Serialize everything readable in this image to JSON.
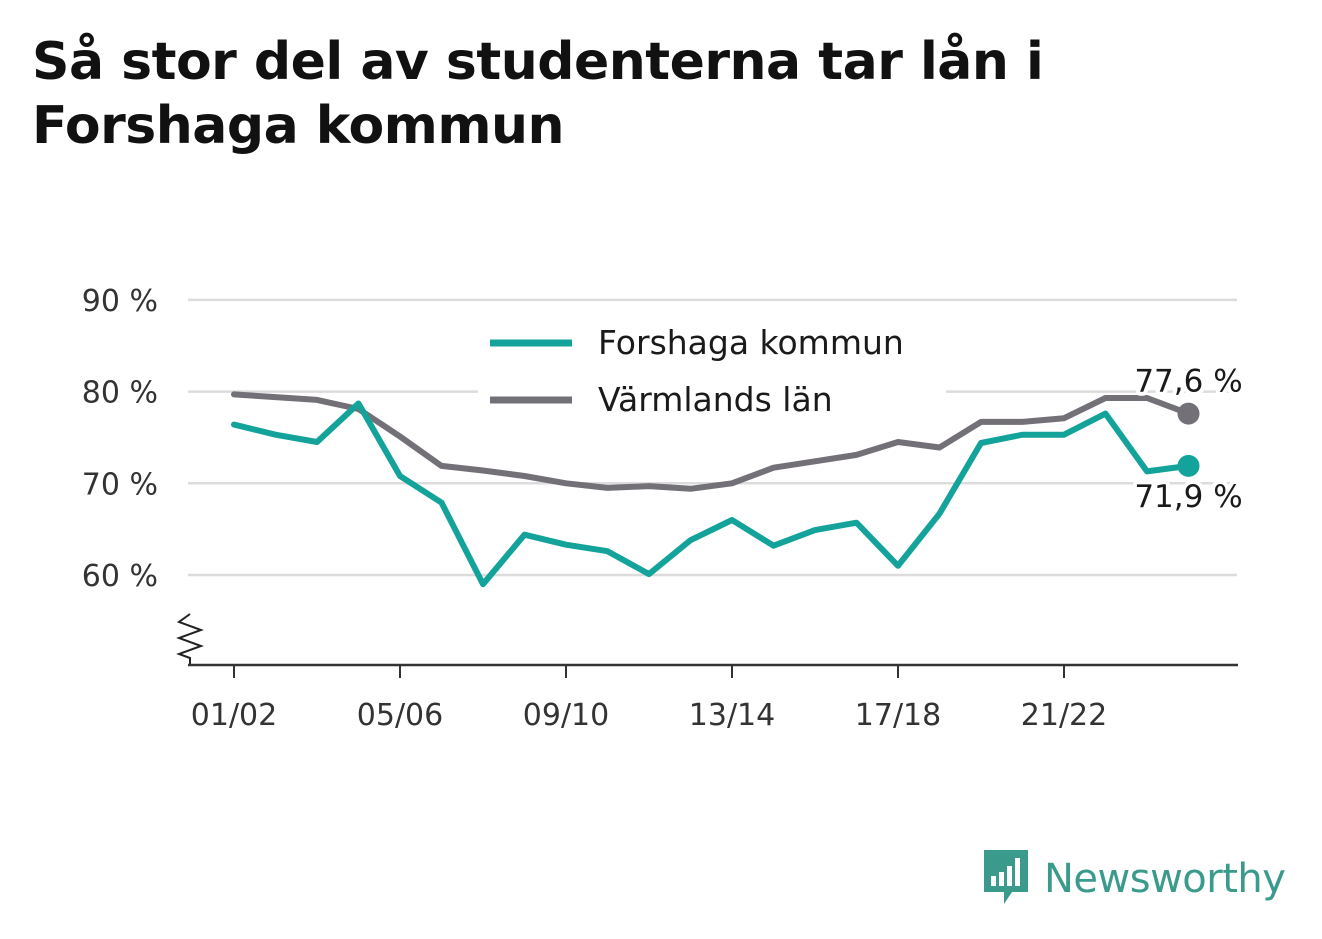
{
  "title": "Så stor del av studenterna tar lån i Forshaga kommun",
  "brand": {
    "name": "Newsworthy",
    "icon": "newsworthy-logo-icon",
    "color": "#3a9a8c"
  },
  "chart_data": {
    "type": "line",
    "x": [
      "01/02",
      "02/03",
      "03/04",
      "04/05",
      "05/06",
      "06/07",
      "07/08",
      "08/09",
      "09/10",
      "10/11",
      "11/12",
      "12/13",
      "13/14",
      "14/15",
      "15/16",
      "16/17",
      "17/18",
      "18/19",
      "19/20",
      "20/21",
      "21/22",
      "22/23",
      "23/24",
      "24/25"
    ],
    "xticks": [
      "01/02",
      "05/06",
      "09/10",
      "13/14",
      "17/18",
      "21/22"
    ],
    "yticks": [
      60,
      70,
      80,
      90
    ],
    "ytick_labels": [
      "60 %",
      "70 %",
      "80 %",
      "90 %"
    ],
    "ylim": [
      50,
      90
    ],
    "y_axis_break": true,
    "grid": true,
    "legend_position": "top-center",
    "series": [
      {
        "name": "Forshaga kommun",
        "color": "#14a39a",
        "values": [
          76.4,
          75.3,
          74.5,
          78.7,
          70.8,
          67.9,
          59.0,
          64.4,
          63.3,
          62.6,
          60.1,
          63.8,
          66.0,
          63.2,
          64.9,
          65.7,
          61.0,
          66.7,
          74.4,
          75.3,
          75.3,
          77.6,
          71.3,
          71.9
        ],
        "end_label": "71,9 %"
      },
      {
        "name": "Värmlands län",
        "color": "#737078",
        "values": [
          79.7,
          79.4,
          79.1,
          78.1,
          75.1,
          71.9,
          71.4,
          70.8,
          70.0,
          69.5,
          69.7,
          69.4,
          70.0,
          71.7,
          72.4,
          73.1,
          74.5,
          73.9,
          76.7,
          76.7,
          77.1,
          79.3,
          79.3,
          77.6
        ],
        "end_label": "77,6 %"
      }
    ]
  }
}
